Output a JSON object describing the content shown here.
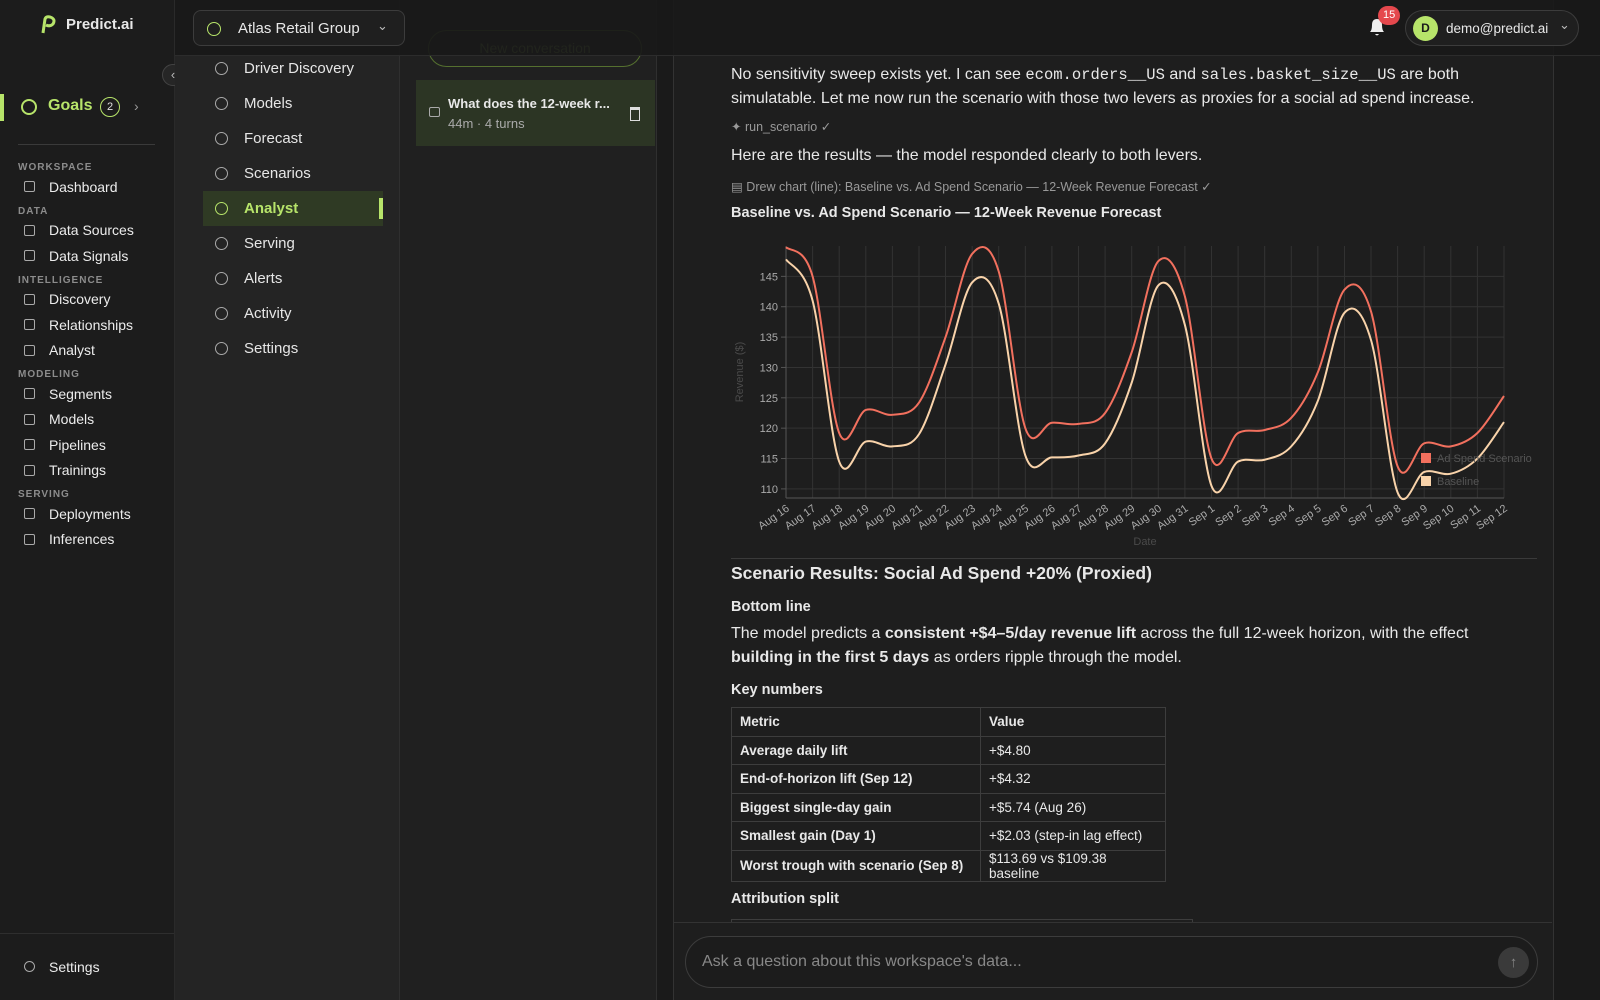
{
  "app": {
    "brand": "Predict.ai",
    "goals": {
      "label": "Goals",
      "count": 2
    },
    "nav": [
      {
        "title": "WORKSPACE",
        "items": [
          "Dashboard"
        ]
      },
      {
        "title": "DATA",
        "items": [
          "Data Sources",
          "Data Signals"
        ]
      },
      {
        "title": "INTELLIGENCE",
        "items": [
          "Discovery",
          "Relationships",
          "Analyst"
        ]
      },
      {
        "title": "MODELING",
        "items": [
          "Segments",
          "Models",
          "Pipelines",
          "Trainings"
        ]
      },
      {
        "title": "SERVING",
        "items": [
          "Deployments",
          "Inferences"
        ]
      }
    ],
    "footer": "Settings"
  },
  "topbar": {
    "workspace": "Atlas Retail Group",
    "notifications": 15,
    "user": {
      "initial": "D",
      "email": "demo@predict.ai"
    }
  },
  "subnav": {
    "items": [
      "Driver Discovery",
      "Models",
      "Forecast",
      "Scenarios",
      "Analyst",
      "Serving",
      "Alerts",
      "Activity",
      "Settings"
    ],
    "active": 4
  },
  "conversations": {
    "new": "New conversation",
    "items": [
      {
        "title": "What does the 12-week r...",
        "meta": "44m · 4 turns"
      }
    ]
  },
  "message": {
    "intro": [
      "No sensitivity sweep exists yet. I can see ",
      "ecom.orders__US",
      " and ",
      "sales.basket_size__US",
      " are both simulatable. Let me now run the scenario with those two levers as proxies for a social ad spend increase."
    ],
    "tool_call": "run_scenario",
    "results_intro": "Here are the results — the model responded clearly to both levers.",
    "chart_call": "Drew chart (line): Baseline vs. Ad Spend Scenario — 12-Week Revenue Forecast",
    "heading": "Scenario Results: Social Ad Spend +20% (Proxied)",
    "bottom_line_title": "Bottom line",
    "bottom_line": [
      "The model predicts a ",
      "consistent +$4–5/day revenue lift",
      " across the full 12-week horizon, with the effect ",
      "building in the first 5 days",
      " as orders ripple through the model."
    ],
    "key_numbers_title": "Key numbers",
    "table": {
      "header": [
        "Metric",
        "Value"
      ],
      "rows": [
        [
          "Average daily lift",
          "+$4.80"
        ],
        [
          "End-of-horizon lift (Sep 12)",
          "+$4.32"
        ],
        [
          "Biggest single-day gain",
          "+$5.74 (Aug 26)"
        ],
        [
          "Smallest gain (Day 1)",
          "+$2.03 (step-in lag effect)"
        ],
        [
          "Worst trough with scenario (Sep 8)",
          "$113.69 vs $109.38 baseline"
        ]
      ]
    },
    "attribution_title": "Attribution split"
  },
  "chart_data": {
    "type": "line",
    "title": "Baseline vs. Ad Spend Scenario — 12-Week Revenue Forecast",
    "x_label": "Date",
    "y_label": "Revenue ($)",
    "categories": [
      "Aug 16",
      "Aug 17",
      "Aug 18",
      "Aug 19",
      "Aug 20",
      "Aug 21",
      "Aug 22",
      "Aug 23",
      "Aug 24",
      "Aug 25",
      "Aug 26",
      "Aug 27",
      "Aug 28",
      "Aug 29",
      "Aug 30",
      "Aug 31",
      "Sep 1",
      "Sep 2",
      "Sep 3",
      "Sep 4",
      "Sep 5",
      "Sep 6",
      "Sep 7",
      "Sep 8",
      "Sep 9",
      "Sep 10",
      "Sep 11",
      "Sep 12"
    ],
    "series": [
      {
        "name": "Ad Spend Scenario",
        "color": "#f2705e",
        "values": [
          149.8,
          145,
          119.2,
          123,
          122.2,
          124.2,
          135,
          148.7,
          145.8,
          120,
          120.9,
          120.7,
          122.5,
          132.5,
          147.5,
          141.7,
          115,
          119.2,
          119.7,
          121.7,
          129.2,
          142.8,
          139.2,
          113.7,
          117.5,
          117,
          119.2,
          125.3
        ]
      },
      {
        "name": "Baseline",
        "color": "#f9d3aa",
        "values": [
          147.8,
          141,
          114.5,
          117.8,
          117,
          119,
          130.5,
          144,
          140.5,
          115.5,
          115.2,
          115.5,
          117.5,
          127.5,
          143.5,
          137,
          110.5,
          114.5,
          114.8,
          117,
          124.5,
          139,
          134.5,
          109.4,
          112.8,
          112.5,
          115,
          121
        ]
      }
    ],
    "ylim": [
      108.5,
      150
    ],
    "yticks": [
      110,
      115,
      120,
      125,
      130,
      135,
      140,
      145
    ],
    "grid": true,
    "legend": "right"
  },
  "composer": {
    "placeholder": "Ask a question about this workspace's data..."
  }
}
